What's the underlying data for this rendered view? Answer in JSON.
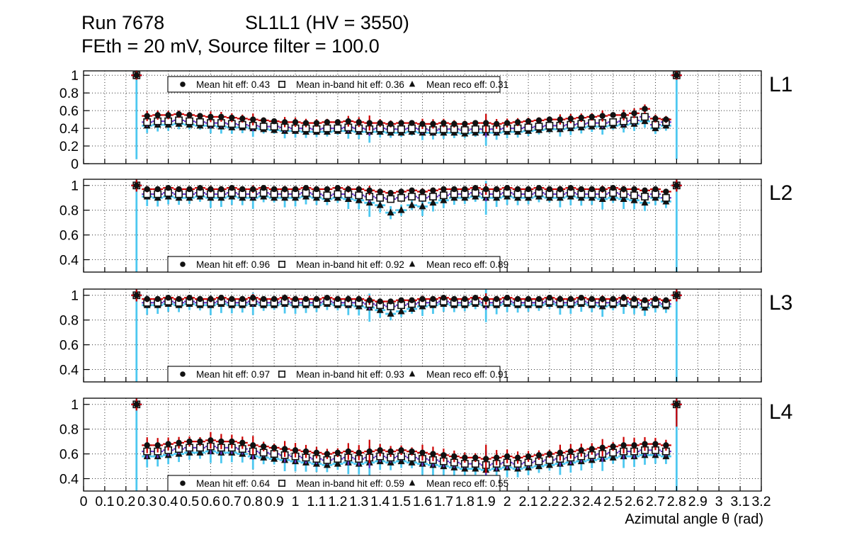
{
  "header": {
    "run": "Run 7678",
    "config": "SL1L1 (HV = 3550)",
    "line2": "FEth = 20 mV, Source filter = 100.0"
  },
  "xaxis": {
    "title": "Azimutal angle θ (rad)",
    "min": 0,
    "max": 3.2,
    "tick_step": 0.1,
    "tick_labels": [
      "0",
      "0.1",
      "0.2",
      "0.3",
      "0.4",
      "0.5",
      "0.6",
      "0.7",
      "0.8",
      "0.9",
      "1",
      "1.1",
      "1.2",
      "1.3",
      "1.4",
      "1.5",
      "1.6",
      "1.7",
      "1.8",
      "1.9",
      "2",
      "2.1",
      "2.2",
      "2.3",
      "2.4",
      "2.5",
      "2.6",
      "2.7",
      "2.8",
      "2.9",
      "3",
      "3.1",
      "3.2"
    ]
  },
  "style": {
    "hit_color": "#cc0000",
    "inband_color": "#6633cc",
    "reco_color": "#4dc8f0",
    "marker_color": "#111111",
    "grid_color": "#333333"
  },
  "x": [
    0.25,
    0.3,
    0.35,
    0.4,
    0.45,
    0.5,
    0.55,
    0.6,
    0.65,
    0.7,
    0.75,
    0.8,
    0.85,
    0.9,
    0.95,
    1.0,
    1.05,
    1.1,
    1.15,
    1.2,
    1.25,
    1.3,
    1.35,
    1.4,
    1.45,
    1.5,
    1.55,
    1.6,
    1.65,
    1.7,
    1.75,
    1.8,
    1.85,
    1.9,
    1.95,
    2.0,
    2.05,
    2.1,
    2.15,
    2.2,
    2.25,
    2.3,
    2.35,
    2.4,
    2.45,
    2.5,
    2.55,
    2.6,
    2.65,
    2.7,
    2.75,
    2.8
  ],
  "xerr": 0.025,
  "chart_data": [
    {
      "type": "scatter",
      "panel_label": "L1",
      "ylim": [
        0,
        1.05
      ],
      "ytick_values": [
        0,
        0.2,
        0.4,
        0.6,
        0.8,
        1
      ],
      "ytick_labels": [
        "0",
        "0.2",
        "0.4",
        "0.6",
        "0.8",
        "1"
      ],
      "legend": {
        "position": "top",
        "entries": [
          {
            "marker": "circle",
            "label": "Mean hit  eff: 0.43"
          },
          {
            "marker": "square",
            "label": "Mean in-band hit eff: 0.36"
          },
          {
            "marker": "triangle",
            "label": "Mean reco eff: 0.31"
          }
        ]
      },
      "series": [
        {
          "name": "hit",
          "marker": "circle",
          "color": "#cc0000",
          "yerr_base": 0.045,
          "yerr_end": [
            0.05,
            0.05
          ],
          "y": [
            1.0,
            0.54,
            0.55,
            0.55,
            0.56,
            0.55,
            0.54,
            0.53,
            0.53,
            0.52,
            0.51,
            0.5,
            0.49,
            0.48,
            0.47,
            0.47,
            0.46,
            0.46,
            0.47,
            0.47,
            0.48,
            0.47,
            0.46,
            0.46,
            0.45,
            0.46,
            0.46,
            0.45,
            0.45,
            0.46,
            0.45,
            0.45,
            0.46,
            0.46,
            0.45,
            0.46,
            0.47,
            0.48,
            0.49,
            0.5,
            0.5,
            0.51,
            0.52,
            0.53,
            0.54,
            0.55,
            0.55,
            0.57,
            0.62,
            0.51,
            0.5,
            1.0
          ]
        },
        {
          "name": "inband",
          "marker": "square",
          "color": "#6633cc",
          "yerr_base": 0.04,
          "yerr_end": [
            0.04,
            0.04
          ],
          "y": [
            1.0,
            0.47,
            0.48,
            0.48,
            0.49,
            0.48,
            0.47,
            0.46,
            0.46,
            0.45,
            0.44,
            0.43,
            0.42,
            0.42,
            0.41,
            0.4,
            0.4,
            0.39,
            0.4,
            0.4,
            0.41,
            0.4,
            0.39,
            0.4,
            0.39,
            0.39,
            0.4,
            0.39,
            0.38,
            0.39,
            0.39,
            0.38,
            0.39,
            0.39,
            0.39,
            0.4,
            0.4,
            0.41,
            0.42,
            0.43,
            0.43,
            0.44,
            0.45,
            0.46,
            0.46,
            0.47,
            0.48,
            0.49,
            0.53,
            0.44,
            0.47,
            1.0
          ]
        },
        {
          "name": "reco",
          "marker": "triangle",
          "color": "#4dc8f0",
          "yerr_base": 0.065,
          "yerr_end": [
            0.95,
            0.95
          ],
          "y": [
            1.0,
            0.43,
            0.44,
            0.44,
            0.45,
            0.44,
            0.43,
            0.43,
            0.42,
            0.41,
            0.41,
            0.4,
            0.39,
            0.38,
            0.37,
            0.37,
            0.36,
            0.36,
            0.36,
            0.37,
            0.37,
            0.36,
            0.36,
            0.36,
            0.35,
            0.35,
            0.36,
            0.35,
            0.35,
            0.35,
            0.35,
            0.34,
            0.35,
            0.35,
            0.35,
            0.36,
            0.36,
            0.37,
            0.38,
            0.39,
            0.39,
            0.4,
            0.41,
            0.42,
            0.42,
            0.43,
            0.44,
            0.45,
            0.48,
            0.4,
            0.43,
            1.0
          ]
        }
      ]
    },
    {
      "type": "scatter",
      "panel_label": "L2",
      "ylim": [
        0.3,
        1.05
      ],
      "ytick_values": [
        0.4,
        0.6,
        0.8,
        1
      ],
      "ytick_labels": [
        "0.4",
        "0.6",
        "0.8",
        "1"
      ],
      "legend": {
        "position": "bottom",
        "entries": [
          {
            "marker": "circle",
            "label": "Mean hit  eff: 0.96"
          },
          {
            "marker": "square",
            "label": "Mean in-band hit eff: 0.92"
          },
          {
            "marker": "triangle",
            "label": "Mean reco eff: 0.89"
          }
        ]
      },
      "series": [
        {
          "name": "hit",
          "marker": "circle",
          "color": "#cc0000",
          "yerr_base": 0.02,
          "yerr_end": [
            0.05,
            0.05
          ],
          "y": [
            1.0,
            0.97,
            0.97,
            0.98,
            0.97,
            0.97,
            0.98,
            0.97,
            0.97,
            0.98,
            0.97,
            0.97,
            0.98,
            0.97,
            0.97,
            0.97,
            0.98,
            0.97,
            0.97,
            0.98,
            0.97,
            0.97,
            0.96,
            0.95,
            0.94,
            0.95,
            0.96,
            0.95,
            0.96,
            0.97,
            0.97,
            0.97,
            0.98,
            0.97,
            0.97,
            0.98,
            0.97,
            0.97,
            0.98,
            0.97,
            0.97,
            0.98,
            0.97,
            0.97,
            0.97,
            0.98,
            0.97,
            0.97,
            0.96,
            0.97,
            0.95,
            1.0
          ]
        },
        {
          "name": "inband",
          "marker": "square",
          "color": "#6633cc",
          "yerr_base": 0.025,
          "yerr_end": [
            0.04,
            0.04
          ],
          "y": [
            1.0,
            0.93,
            0.93,
            0.94,
            0.93,
            0.93,
            0.94,
            0.93,
            0.93,
            0.94,
            0.93,
            0.93,
            0.94,
            0.93,
            0.93,
            0.93,
            0.94,
            0.93,
            0.92,
            0.93,
            0.93,
            0.92,
            0.91,
            0.9,
            0.89,
            0.9,
            0.91,
            0.9,
            0.91,
            0.92,
            0.93,
            0.93,
            0.94,
            0.93,
            0.93,
            0.94,
            0.93,
            0.93,
            0.94,
            0.93,
            0.93,
            0.94,
            0.93,
            0.93,
            0.93,
            0.94,
            0.93,
            0.92,
            0.91,
            0.93,
            0.9,
            1.0
          ]
        },
        {
          "name": "reco",
          "marker": "triangle",
          "color": "#4dc8f0",
          "yerr_base": 0.06,
          "yerr_end": [
            1.0,
            1.0
          ],
          "y": [
            1.0,
            0.91,
            0.9,
            0.91,
            0.9,
            0.9,
            0.91,
            0.9,
            0.9,
            0.91,
            0.9,
            0.9,
            0.91,
            0.9,
            0.9,
            0.9,
            0.91,
            0.9,
            0.89,
            0.9,
            0.89,
            0.88,
            0.86,
            0.84,
            0.78,
            0.8,
            0.84,
            0.83,
            0.86,
            0.88,
            0.9,
            0.9,
            0.91,
            0.9,
            0.9,
            0.91,
            0.9,
            0.9,
            0.91,
            0.9,
            0.9,
            0.91,
            0.9,
            0.9,
            0.89,
            0.9,
            0.89,
            0.88,
            0.86,
            0.9,
            0.87,
            1.0
          ]
        }
      ]
    },
    {
      "type": "scatter",
      "panel_label": "L3",
      "ylim": [
        0.3,
        1.05
      ],
      "ytick_values": [
        0.4,
        0.6,
        0.8,
        1
      ],
      "ytick_labels": [
        "0.4",
        "0.6",
        "0.8",
        "1"
      ],
      "legend": {
        "position": "bottom",
        "entries": [
          {
            "marker": "circle",
            "label": "Mean hit  eff: 0.97"
          },
          {
            "marker": "square",
            "label": "Mean in-band hit eff: 0.93"
          },
          {
            "marker": "triangle",
            "label": "Mean reco eff: 0.91"
          }
        ]
      },
      "series": [
        {
          "name": "hit",
          "marker": "circle",
          "color": "#cc0000",
          "yerr_base": 0.02,
          "yerr_end": [
            0.05,
            0.05
          ],
          "y": [
            1.0,
            0.97,
            0.97,
            0.98,
            0.97,
            0.98,
            0.97,
            0.97,
            0.98,
            0.97,
            0.97,
            0.98,
            0.97,
            0.97,
            0.98,
            0.97,
            0.97,
            0.97,
            0.98,
            0.97,
            0.97,
            0.97,
            0.96,
            0.95,
            0.95,
            0.96,
            0.96,
            0.97,
            0.97,
            0.98,
            0.97,
            0.97,
            0.98,
            0.97,
            0.97,
            0.98,
            0.97,
            0.97,
            0.97,
            0.98,
            0.97,
            0.97,
            0.98,
            0.97,
            0.97,
            0.97,
            0.98,
            0.97,
            0.96,
            0.97,
            0.96,
            1.0
          ]
        },
        {
          "name": "inband",
          "marker": "square",
          "color": "#6633cc",
          "yerr_base": 0.025,
          "yerr_end": [
            0.04,
            0.04
          ],
          "y": [
            1.0,
            0.94,
            0.94,
            0.95,
            0.94,
            0.95,
            0.94,
            0.94,
            0.95,
            0.94,
            0.94,
            0.95,
            0.94,
            0.94,
            0.95,
            0.94,
            0.94,
            0.94,
            0.95,
            0.94,
            0.94,
            0.94,
            0.93,
            0.92,
            0.91,
            0.92,
            0.93,
            0.94,
            0.94,
            0.95,
            0.94,
            0.94,
            0.95,
            0.94,
            0.94,
            0.95,
            0.94,
            0.94,
            0.94,
            0.95,
            0.94,
            0.94,
            0.95,
            0.94,
            0.94,
            0.94,
            0.95,
            0.94,
            0.93,
            0.94,
            0.93,
            1.0
          ]
        },
        {
          "name": "reco",
          "marker": "triangle",
          "color": "#4dc8f0",
          "yerr_base": 0.06,
          "yerr_end": [
            1.0,
            1.0
          ],
          "y": [
            1.0,
            0.92,
            0.92,
            0.93,
            0.92,
            0.93,
            0.92,
            0.92,
            0.93,
            0.92,
            0.92,
            0.93,
            0.92,
            0.92,
            0.93,
            0.92,
            0.92,
            0.92,
            0.93,
            0.92,
            0.92,
            0.91,
            0.9,
            0.88,
            0.85,
            0.87,
            0.89,
            0.91,
            0.92,
            0.93,
            0.92,
            0.92,
            0.93,
            0.92,
            0.92,
            0.93,
            0.92,
            0.92,
            0.92,
            0.93,
            0.92,
            0.92,
            0.93,
            0.92,
            0.91,
            0.92,
            0.93,
            0.92,
            0.9,
            0.92,
            0.91,
            1.0
          ]
        }
      ]
    },
    {
      "type": "scatter",
      "panel_label": "L4",
      "ylim": [
        0.3,
        1.05
      ],
      "ytick_values": [
        0.4,
        0.6,
        0.8,
        1
      ],
      "ytick_labels": [
        "0.4",
        "0.6",
        "0.8",
        "1"
      ],
      "legend": {
        "position": "bottom",
        "entries": [
          {
            "marker": "circle",
            "label": "Mean hit  eff: 0.64"
          },
          {
            "marker": "square",
            "label": "Mean in-band hit eff: 0.59"
          },
          {
            "marker": "triangle",
            "label": "Mean reco eff: 0.55"
          }
        ]
      },
      "series": [
        {
          "name": "hit",
          "marker": "circle",
          "color": "#cc0000",
          "yerr_base": 0.05,
          "yerr_end": [
            0.05,
            0.18
          ],
          "y": [
            1.0,
            0.67,
            0.67,
            0.68,
            0.69,
            0.7,
            0.7,
            0.71,
            0.7,
            0.7,
            0.69,
            0.67,
            0.66,
            0.65,
            0.64,
            0.63,
            0.62,
            0.61,
            0.6,
            0.61,
            0.62,
            0.61,
            0.62,
            0.63,
            0.62,
            0.63,
            0.62,
            0.61,
            0.6,
            0.59,
            0.58,
            0.57,
            0.57,
            0.56,
            0.57,
            0.58,
            0.57,
            0.58,
            0.59,
            0.6,
            0.61,
            0.62,
            0.63,
            0.64,
            0.65,
            0.66,
            0.67,
            0.67,
            0.68,
            0.68,
            0.67,
            1.0
          ]
        },
        {
          "name": "inband",
          "marker": "square",
          "color": "#6633cc",
          "yerr_base": 0.045,
          "yerr_end": [
            0.04,
            0.12
          ],
          "y": [
            1.0,
            0.62,
            0.62,
            0.63,
            0.64,
            0.65,
            0.65,
            0.66,
            0.65,
            0.65,
            0.64,
            0.62,
            0.61,
            0.6,
            0.59,
            0.58,
            0.57,
            0.56,
            0.55,
            0.56,
            0.57,
            0.56,
            0.57,
            0.58,
            0.57,
            0.58,
            0.57,
            0.56,
            0.55,
            0.54,
            0.53,
            0.52,
            0.52,
            0.51,
            0.52,
            0.53,
            0.52,
            0.53,
            0.54,
            0.55,
            0.56,
            0.57,
            0.58,
            0.59,
            0.6,
            0.61,
            0.62,
            0.62,
            0.63,
            0.63,
            0.62,
            1.0
          ]
        },
        {
          "name": "reco",
          "marker": "triangle",
          "color": "#4dc8f0",
          "yerr_base": 0.07,
          "yerr_end": [
            1.0,
            1.0
          ],
          "y": [
            1.0,
            0.58,
            0.58,
            0.59,
            0.6,
            0.61,
            0.61,
            0.62,
            0.61,
            0.61,
            0.6,
            0.58,
            0.57,
            0.56,
            0.55,
            0.54,
            0.53,
            0.52,
            0.51,
            0.52,
            0.53,
            0.52,
            0.53,
            0.54,
            0.53,
            0.54,
            0.53,
            0.52,
            0.51,
            0.5,
            0.49,
            0.48,
            0.48,
            0.47,
            0.48,
            0.49,
            0.48,
            0.49,
            0.5,
            0.51,
            0.52,
            0.53,
            0.54,
            0.55,
            0.56,
            0.57,
            0.58,
            0.58,
            0.59,
            0.59,
            0.58,
            1.0
          ]
        }
      ]
    }
  ]
}
